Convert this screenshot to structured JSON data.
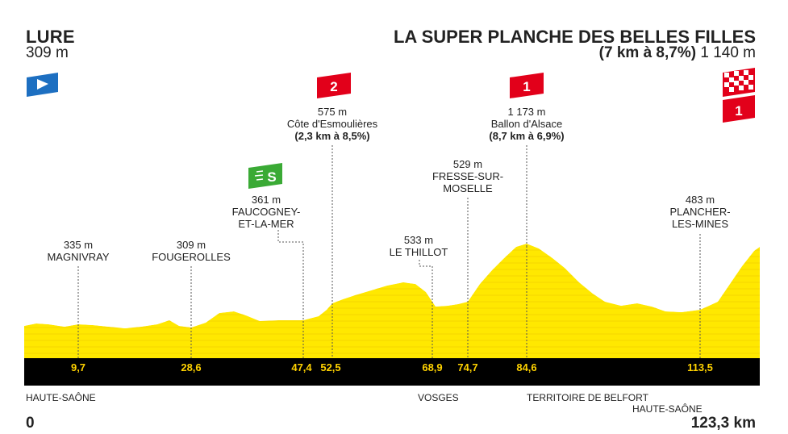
{
  "start": {
    "name": "LURE",
    "altitude": "309 m"
  },
  "finish": {
    "name": "LA SUPER PLANCHE DES BELLES FILLES",
    "climb": "(7 km à 8,7%)",
    "altitude": "1 140 m"
  },
  "waypoints": [
    {
      "id": "magnivray",
      "alt": "335 m",
      "name": "MAGNIVRAY",
      "km": "9,7"
    },
    {
      "id": "fougerolles",
      "alt": "309 m",
      "name": "FOUGEROLLES",
      "km": "28,6"
    },
    {
      "id": "faucogney",
      "alt": "361 m",
      "name": "FAUCOGNEY-",
      "name2": "ET-LA-MER",
      "km": "47,4"
    },
    {
      "id": "esmoulieres",
      "alt": "575 m",
      "name": "Côte d'Esmoulières",
      "detail": "(2,3 km à 8,5%)",
      "km": "52,5",
      "category": "2"
    },
    {
      "id": "thillot",
      "alt": "533 m",
      "name": "LE THILLOT",
      "km": "68,9"
    },
    {
      "id": "fresse",
      "alt": "529 m",
      "name": "FRESSE-SUR-",
      "name2": "MOSELLE",
      "km": "74,7"
    },
    {
      "id": "alsace",
      "alt": "1 173 m",
      "name": "Ballon d'Alsace",
      "detail": "(8,7 km à 6,9%)",
      "km": "84,6",
      "category": "1"
    },
    {
      "id": "plancher",
      "alt": "483 m",
      "name": "PLANCHER-",
      "name2": "LES-MINES",
      "km": "113,5"
    }
  ],
  "sprint_label": "S",
  "finish_category": "1",
  "regions": [
    "HAUTE-SAÔNE",
    "VOSGES",
    "TERRITOIRE DE BELFORT",
    "HAUTE-SAÔNE"
  ],
  "distance_start": "0",
  "distance_total": "123,3 km",
  "colors": {
    "profile": "#ffe800",
    "profile_line": "#f3d000",
    "band": "#000000",
    "km_text": "#ffd200",
    "climb": "#e2001a",
    "sprint": "#3aaa35",
    "start_flag": "#1d6fc1"
  }
}
